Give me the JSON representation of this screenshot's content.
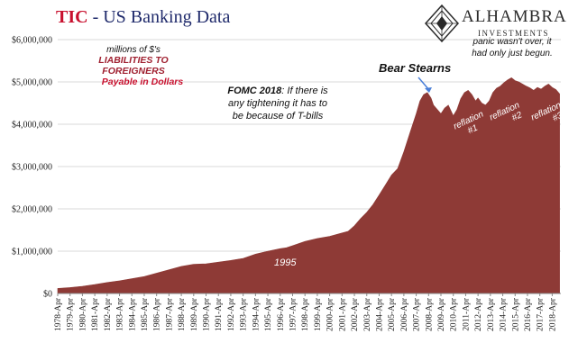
{
  "title": {
    "prefix": "TIC",
    "main": " - US Banking Data"
  },
  "logo": {
    "name": "ALHAMBRA",
    "sub": "INVESTMENTS"
  },
  "colors": {
    "area": "#8e3a36",
    "title_red": "#c8102e",
    "title_blue": "#1f2a6b",
    "annotation_red": "#a02030",
    "arrow": "#4a7fd8"
  },
  "annotations": {
    "units": "millions of $'s",
    "series_line1": "LIABILITIES TO FOREIGNERS",
    "series_line2": "Payable in Dollars",
    "fomc_bold": "FOMC 2018",
    "fomc_rest1": ": If there is",
    "fomc_rest2": "any tightening it has to",
    "fomc_rest3": "be because of T-bills",
    "bear": "Bear Stearns",
    "panic1": "panic wasn't over, it",
    "panic2": "had only just begun.",
    "reflation1": "reflation",
    "reflation1_num": "#1",
    "reflation2": "reflation",
    "reflation2_num": "#2",
    "reflation3": "reflation",
    "reflation3_num": "#3",
    "year_1995": "1995"
  },
  "chart_data": {
    "type": "area",
    "title": "TIC - US Banking Data",
    "ylim": [
      0,
      6000000
    ],
    "y_ticks": [
      0,
      1000000,
      2000000,
      3000000,
      4000000,
      5000000,
      6000000
    ],
    "y_tick_labels": [
      "$0",
      "$1,000,000",
      "$2,000,000",
      "$3,000,000",
      "$4,000,000",
      "$5,000,000",
      "$6,000,000"
    ],
    "x_tick_labels": [
      "1978-Apr",
      "1979-Apr",
      "1980-Apr",
      "1981-Apr",
      "1982-Apr",
      "1983-Apr",
      "1984-Apr",
      "1985-Apr",
      "1986-Apr",
      "1987-Apr",
      "1988-Apr",
      "1989-Apr",
      "1990-Apr",
      "1991-Apr",
      "1992-Apr",
      "1993-Apr",
      "1994-Apr",
      "1995-Apr",
      "1996-Apr",
      "1997-Apr",
      "1998-Apr",
      "1999-Apr",
      "2000-Apr",
      "2001-Apr",
      "2002-Apr",
      "2003-Apr",
      "2004-Apr",
      "2005-Apr",
      "2006-Apr",
      "2007-Apr",
      "2008-Apr",
      "2009-Apr",
      "2010-Apr",
      "2011-Apr",
      "2012-Apr",
      "2013-Apr",
      "2014-Apr",
      "2015-Apr",
      "2016-Apr",
      "2017-Apr",
      "2018-Apr"
    ],
    "grid": true,
    "series": [
      {
        "x": [
          1978.0,
          1979.0,
          1980.0,
          1981.0,
          1982.0,
          1983.0,
          1984.0,
          1985.0,
          1986.0,
          1987.0,
          1988.0,
          1989.0,
          1990.0,
          1991.0,
          1992.0,
          1993.0,
          1994.0,
          1995.0,
          1996.0,
          1996.5,
          1997.0,
          1998.0,
          1999.0,
          2000.0,
          2001.0,
          2001.5,
          2002.0,
          2002.5,
          2003.0,
          2003.5,
          2004.0,
          2004.5,
          2005.0,
          2005.5,
          2006.0,
          2006.5,
          2007.0,
          2007.3,
          2007.6,
          2007.9,
          2008.2,
          2008.4,
          2008.7,
          2009.0,
          2009.3,
          2009.6,
          2010.0,
          2010.3,
          2010.6,
          2010.9,
          2011.2,
          2011.5,
          2011.8,
          2012.0,
          2012.3,
          2012.6,
          2012.9,
          2013.2,
          2013.5,
          2013.8,
          2014.1,
          2014.4,
          2014.7,
          2015.0,
          2015.3,
          2015.6,
          2015.9,
          2016.2,
          2016.5,
          2016.8,
          2017.1,
          2017.4,
          2017.7,
          2018.0,
          2018.3,
          2018.6
        ],
        "values": [
          120000,
          140000,
          170000,
          210000,
          260000,
          300000,
          350000,
          400000,
          480000,
          560000,
          640000,
          690000,
          700000,
          740000,
          780000,
          830000,
          930000,
          1000000,
          1060000,
          1080000,
          1130000,
          1230000,
          1300000,
          1350000,
          1430000,
          1470000,
          1600000,
          1770000,
          1920000,
          2100000,
          2330000,
          2560000,
          2800000,
          2950000,
          3350000,
          3800000,
          4250000,
          4550000,
          4700000,
          4750000,
          4620000,
          4450000,
          4350000,
          4250000,
          4380000,
          4450000,
          4200000,
          4350000,
          4600000,
          4750000,
          4800000,
          4700000,
          4550000,
          4620000,
          4500000,
          4450000,
          4550000,
          4750000,
          4850000,
          4900000,
          4980000,
          5050000,
          5100000,
          5030000,
          5000000,
          4950000,
          4900000,
          4860000,
          4800000,
          4870000,
          4830000,
          4900000,
          4950000,
          4870000,
          4820000,
          4720000
        ]
      }
    ]
  }
}
